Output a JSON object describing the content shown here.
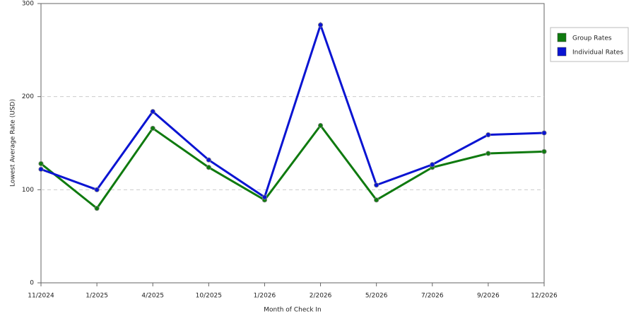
{
  "chart_data": {
    "type": "line",
    "x_label": "Month of Check In",
    "y_label": "Lowest Average Rate (USD)",
    "categories": [
      "11/2024",
      "1/2025",
      "4/2025",
      "10/2025",
      "1/2026",
      "2/2026",
      "5/2026",
      "7/2026",
      "9/2026",
      "12/2026"
    ],
    "series": [
      {
        "name": "Group Rates",
        "color": "#0f7a0f",
        "values": [
          128,
          80,
          166,
          124,
          89,
          169,
          89,
          124,
          139,
          141
        ]
      },
      {
        "name": "Individual Rates",
        "color": "#0a14d2",
        "values": [
          122,
          100,
          184,
          132,
          92,
          277,
          105,
          127,
          159,
          161
        ]
      }
    ],
    "ylim": [
      0,
      300
    ],
    "yticks": [
      0,
      100,
      200,
      300
    ],
    "grid": true,
    "legend": "right"
  }
}
